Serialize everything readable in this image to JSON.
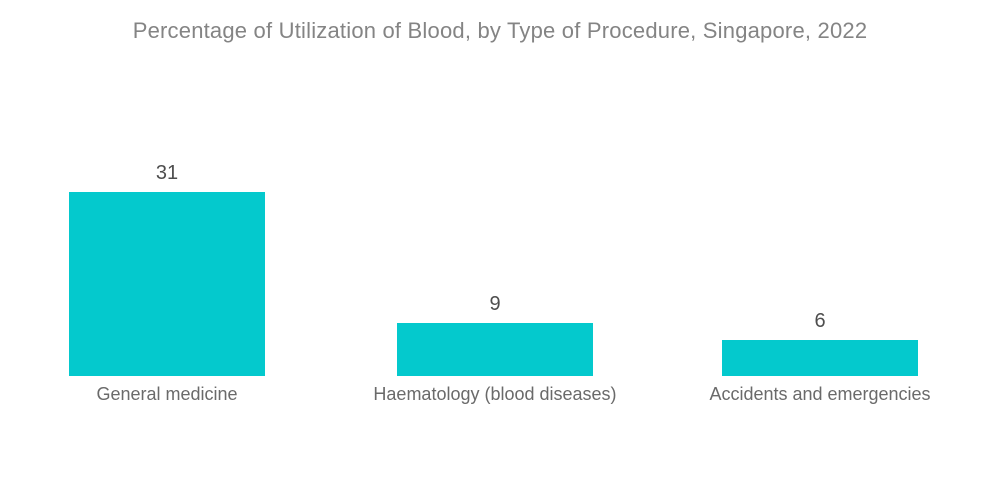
{
  "title": "Percentage of Utilization of Blood, by Type of Procedure, Singapore, 2022",
  "colors": {
    "bar": "#04C9CD",
    "title_text": "#848484",
    "value_text": "#4E4E4E",
    "category_text": "#6A6A6A",
    "background": "#FFFFFF"
  },
  "chart_data": {
    "type": "bar",
    "title": "Percentage of Utilization of Blood, by Type of Procedure, Singapore, 2022",
    "categories": [
      "General medicine",
      "Haematology (blood diseases)",
      "Accidents and emergencies"
    ],
    "values": [
      31,
      9,
      6
    ],
    "xlabel": "",
    "ylabel": "",
    "ylim": [
      0,
      31
    ],
    "grid": false,
    "legend": false,
    "axis_lines": false,
    "data_labels": true,
    "bar_color": "#04C9CD"
  }
}
